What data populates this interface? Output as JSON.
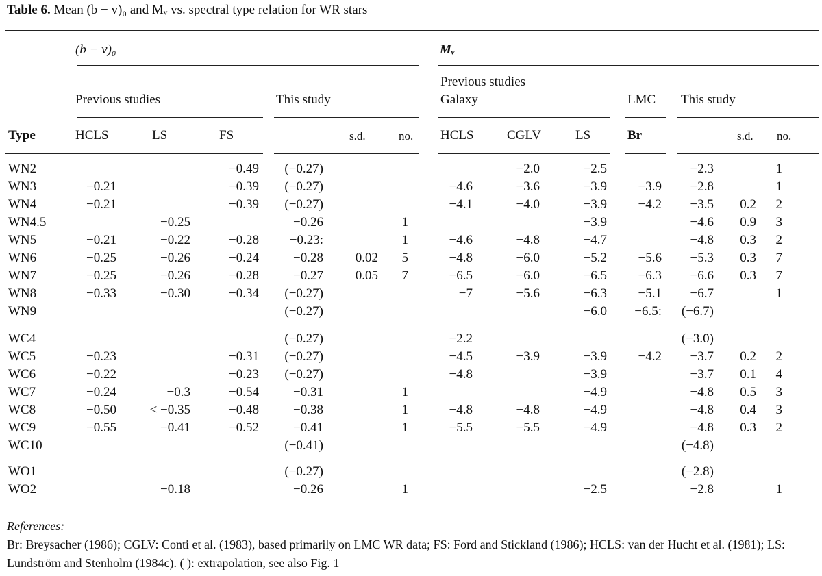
{
  "caption": {
    "label": "Table 6.",
    "text": "Mean (b − v)₀ and Mᵥ vs. spectral type relation for WR stars"
  },
  "headers": {
    "group_bv": "(b − v)₀",
    "group_mv": "Mᵥ",
    "prev_studies": "Previous studies",
    "this_study_bv": "This study",
    "prev_studies_galaxy_1": "Previous studies",
    "prev_studies_galaxy_2": "Galaxy",
    "lmc": "LMC",
    "this_study_mv": "This study",
    "type": "Type",
    "hcls": "HCLS",
    "ls": "LS",
    "fs": "FS",
    "sd": "s.d.",
    "no": "no.",
    "hcls2": "HCLS",
    "cglv": "CGLV",
    "ls2": "LS",
    "br": "Br",
    "sd2": "s.d.",
    "no2": "no."
  },
  "rows": [
    {
      "type": "WN2",
      "hcls": "",
      "ls": "",
      "fs": "−0.49",
      "ts": "(−0.27)",
      "sd": "",
      "no": "",
      "mhcls": "",
      "cglv": "−2.0",
      "mls": "−2.5",
      "br": "",
      "mts": "−2.3",
      "msd": "",
      "mno": "1"
    },
    {
      "type": "WN3",
      "hcls": "−0.21",
      "ls": "",
      "fs": "−0.39",
      "ts": "(−0.27)",
      "sd": "",
      "no": "",
      "mhcls": "−4.6",
      "cglv": "−3.6",
      "mls": "−3.9",
      "br": "−3.9",
      "mts": "−2.8",
      "msd": "",
      "mno": "1"
    },
    {
      "type": "WN4",
      "hcls": "−0.21",
      "ls": "",
      "fs": "−0.39",
      "ts": "(−0.27)",
      "sd": "",
      "no": "",
      "mhcls": "−4.1",
      "cglv": "−4.0",
      "mls": "−3.9",
      "br": "−4.2",
      "mts": "−3.5",
      "msd": "0.2",
      "mno": "2"
    },
    {
      "type": "WN4.5",
      "hcls": "",
      "ls": "−0.25",
      "fs": "",
      "ts": "−0.26",
      "sd": "",
      "no": "1",
      "mhcls": "",
      "cglv": "",
      "mls": "−3.9",
      "br": "",
      "mts": "−4.6",
      "msd": "0.9",
      "mno": "3"
    },
    {
      "type": "WN5",
      "hcls": "−0.21",
      "ls": "−0.22",
      "fs": "−0.28",
      "ts": "−0.23:",
      "sd": "",
      "no": "1",
      "mhcls": "−4.6",
      "cglv": "−4.8",
      "mls": "−4.7",
      "br": "",
      "mts": "−4.8",
      "msd": "0.3",
      "mno": "2"
    },
    {
      "type": "WN6",
      "hcls": "−0.25",
      "ls": "−0.26",
      "fs": "−0.24",
      "ts": "−0.28",
      "sd": "0.02",
      "no": "5",
      "mhcls": "−4.8",
      "cglv": "−6.0",
      "mls": "−5.2",
      "br": "−5.6",
      "mts": "−5.3",
      "msd": "0.3",
      "mno": "7"
    },
    {
      "type": "WN7",
      "hcls": "−0.25",
      "ls": "−0.26",
      "fs": "−0.28",
      "ts": "−0.27",
      "sd": "0.05",
      "no": "7",
      "mhcls": "−6.5",
      "cglv": "−6.0",
      "mls": "−6.5",
      "br": "−6.3",
      "mts": "−6.6",
      "msd": "0.3",
      "mno": "7"
    },
    {
      "type": "WN8",
      "hcls": "−0.33",
      "ls": "−0.30",
      "fs": "−0.34",
      "ts": "(−0.27)",
      "sd": "",
      "no": "",
      "mhcls": "−7",
      "cglv": "−5.6",
      "mls": "−6.3",
      "br": "−5.1",
      "mts": "−6.7",
      "msd": "",
      "mno": "1"
    },
    {
      "type": "WN9",
      "hcls": "",
      "ls": "",
      "fs": "",
      "ts": "(−0.27)",
      "sd": "",
      "no": "",
      "mhcls": "",
      "cglv": "",
      "mls": "−6.0",
      "br": "−6.5:",
      "mts": "(−6.7)",
      "msd": "",
      "mno": ""
    },
    {
      "type": "WC4",
      "hcls": "",
      "ls": "",
      "fs": "",
      "ts": "(−0.27)",
      "sd": "",
      "no": "",
      "mhcls": "−2.2",
      "cglv": "",
      "mls": "",
      "br": "",
      "mts": "(−3.0)",
      "msd": "",
      "mno": ""
    },
    {
      "type": "WC5",
      "hcls": "−0.23",
      "ls": "",
      "fs": "−0.31",
      "ts": "(−0.27)",
      "sd": "",
      "no": "",
      "mhcls": "−4.5",
      "cglv": "−3.9",
      "mls": "−3.9",
      "br": "−4.2",
      "mts": "−3.7",
      "msd": "0.2",
      "mno": "2"
    },
    {
      "type": "WC6",
      "hcls": "−0.22",
      "ls": "",
      "fs": "−0.23",
      "ts": "(−0.27)",
      "sd": "",
      "no": "",
      "mhcls": "−4.8",
      "cglv": "",
      "mls": "−3.9",
      "br": "",
      "mts": "−3.7",
      "msd": "0.1",
      "mno": "4"
    },
    {
      "type": "WC7",
      "hcls": "−0.24",
      "ls": "−0.3",
      "fs": "−0.54",
      "ts": "−0.31",
      "sd": "",
      "no": "1",
      "mhcls": "",
      "cglv": "",
      "mls": "−4.9",
      "br": "",
      "mts": "−4.8",
      "msd": "0.5",
      "mno": "3"
    },
    {
      "type": "WC8",
      "hcls": "−0.50",
      "ls": "< −0.35",
      "fs": "−0.48",
      "ts": "−0.38",
      "sd": "",
      "no": "1",
      "mhcls": "−4.8",
      "cglv": "−4.8",
      "mls": "−4.9",
      "br": "",
      "mts": "−4.8",
      "msd": "0.4",
      "mno": "3"
    },
    {
      "type": "WC9",
      "hcls": "−0.55",
      "ls": "−0.41",
      "fs": "−0.52",
      "ts": "−0.41",
      "sd": "",
      "no": "1",
      "mhcls": "−5.5",
      "cglv": "−5.5",
      "mls": "−4.9",
      "br": "",
      "mts": "−4.8",
      "msd": "0.3",
      "mno": "2"
    },
    {
      "type": "WC10",
      "hcls": "",
      "ls": "",
      "fs": "",
      "ts": "(−0.41)",
      "sd": "",
      "no": "",
      "mhcls": "",
      "cglv": "",
      "mls": "",
      "br": "",
      "mts": "(−4.8)",
      "msd": "",
      "mno": ""
    },
    {
      "type": "WO1",
      "hcls": "",
      "ls": "",
      "fs": "",
      "ts": "(−0.27)",
      "sd": "",
      "no": "",
      "mhcls": "",
      "cglv": "",
      "mls": "",
      "br": "",
      "mts": "(−2.8)",
      "msd": "",
      "mno": ""
    },
    {
      "type": "WO2",
      "hcls": "",
      "ls": "−0.18",
      "fs": "",
      "ts": "−0.26",
      "sd": "",
      "no": "1",
      "mhcls": "",
      "cglv": "",
      "mls": "−2.5",
      "br": "",
      "mts": "−2.8",
      "msd": "",
      "mno": "1"
    }
  ],
  "references": {
    "title": "References:",
    "text": "Br: Breysacher (1986); CGLV: Conti et al. (1983), based primarily on LMC WR data; FS: Ford and Stickland (1986); HCLS: van der Hucht et al. (1981); LS: Lundström and Stenholm (1984c). ( ): extrapolation, see also Fig. 1"
  }
}
